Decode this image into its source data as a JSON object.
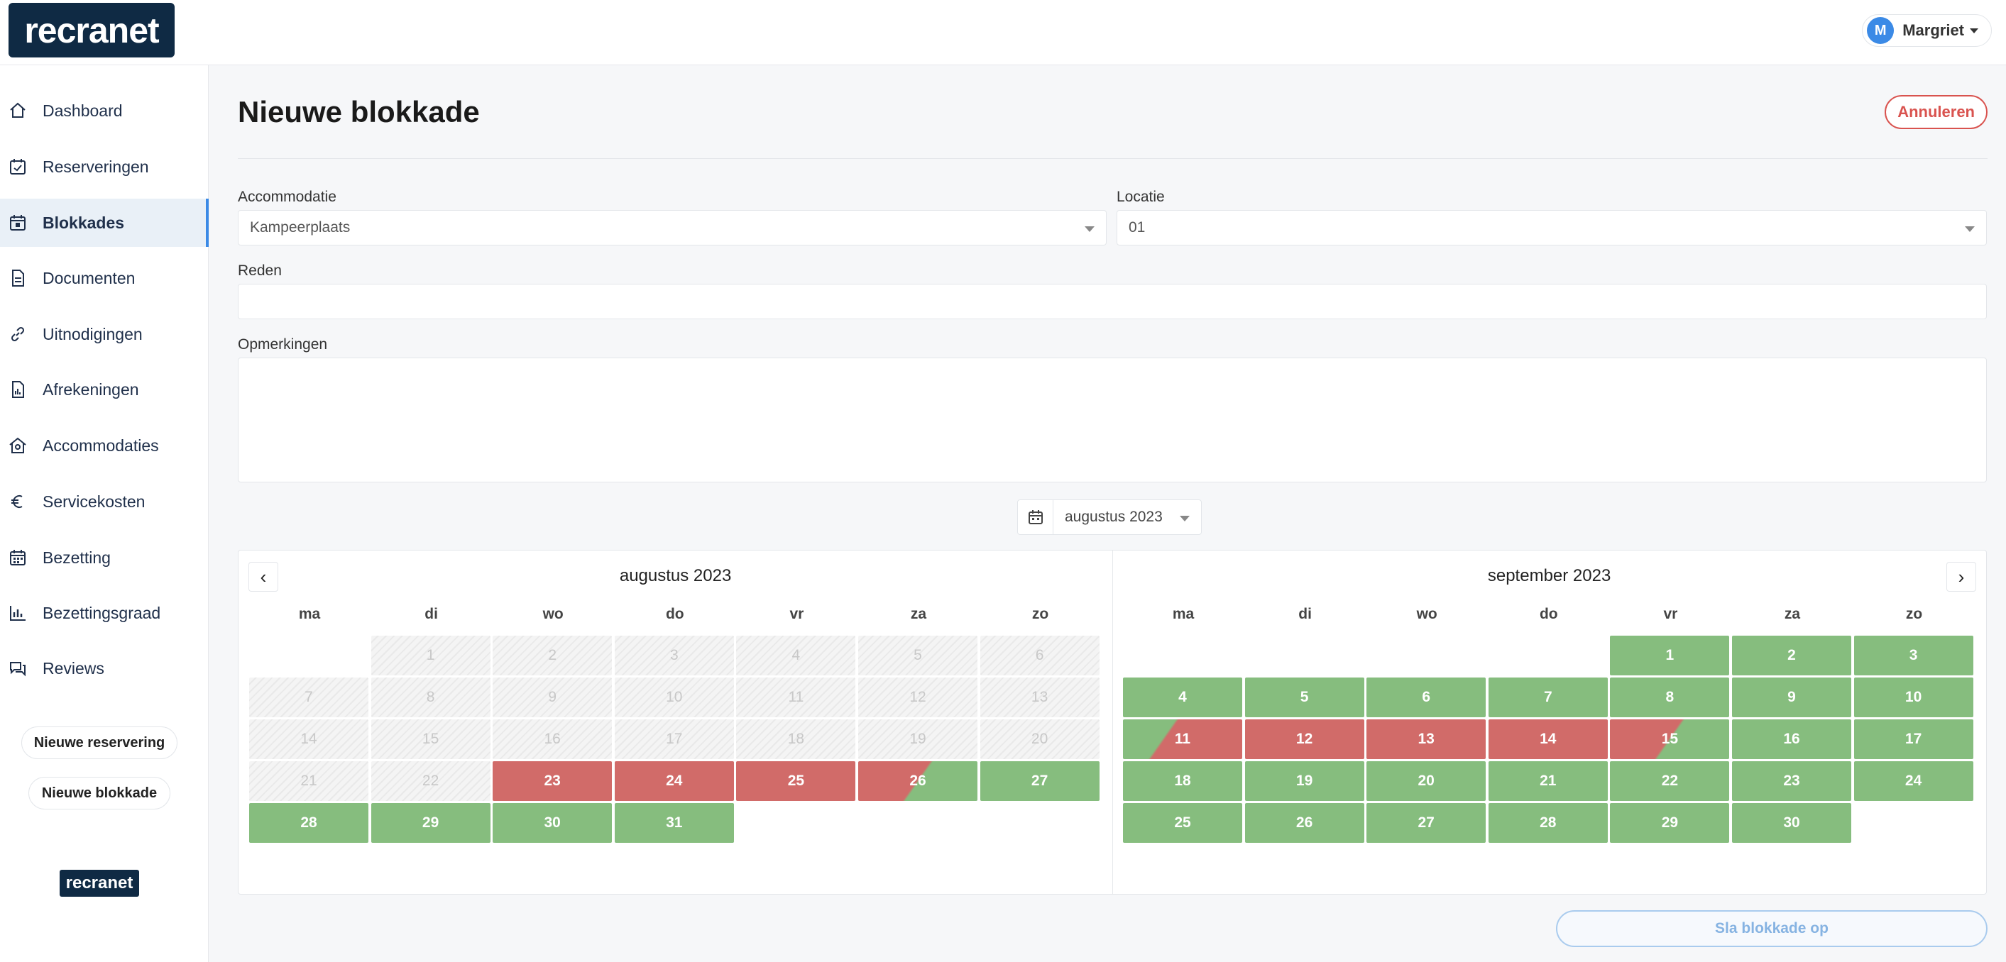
{
  "app": {
    "logo_text": "recranet",
    "footer_logo_text": "recranet"
  },
  "user": {
    "initial": "M",
    "name": "Margriet"
  },
  "sidebar": {
    "items": [
      {
        "label": "Dashboard",
        "icon": "home-icon",
        "active": false
      },
      {
        "label": "Reserveringen",
        "icon": "calendar-check-icon",
        "active": false
      },
      {
        "label": "Blokkades",
        "icon": "calendar-block-icon",
        "active": true
      },
      {
        "label": "Documenten",
        "icon": "document-icon",
        "active": false
      },
      {
        "label": "Uitnodigingen",
        "icon": "link-icon",
        "active": false
      },
      {
        "label": "Afrekeningen",
        "icon": "invoice-icon",
        "active": false
      },
      {
        "label": "Accommodaties",
        "icon": "house-icon",
        "active": false
      },
      {
        "label": "Servicekosten",
        "icon": "euro-icon",
        "active": false
      },
      {
        "label": "Bezetting",
        "icon": "calendar-icon",
        "active": false
      },
      {
        "label": "Bezettingsgraad",
        "icon": "bar-chart-icon",
        "active": false
      },
      {
        "label": "Reviews",
        "icon": "chat-icon",
        "active": false
      }
    ],
    "new_reservation": "Nieuwe reservering",
    "new_block": "Nieuwe blokkade"
  },
  "page": {
    "title": "Nieuwe blokkade",
    "cancel_label": "Annuleren",
    "save_label": "Sla blokkade op"
  },
  "form": {
    "accommodation": {
      "label": "Accommodatie",
      "value": "Kampeerplaats"
    },
    "location": {
      "label": "Locatie",
      "value": "01"
    },
    "reason": {
      "label": "Reden",
      "value": ""
    },
    "remarks": {
      "label": "Opmerkingen",
      "value": ""
    }
  },
  "month_picker": {
    "value": "augustus 2023"
  },
  "calendar": {
    "weekdays": [
      "ma",
      "di",
      "wo",
      "do",
      "vr",
      "za",
      "zo"
    ],
    "months": [
      {
        "title": "augustus 2023",
        "first_weekday_index": 1,
        "days": 31,
        "status": {
          "1": "past",
          "2": "past",
          "3": "past",
          "4": "past",
          "5": "past",
          "6": "past",
          "7": "past",
          "8": "past",
          "9": "past",
          "10": "past",
          "11": "past",
          "12": "past",
          "13": "past",
          "14": "past",
          "15": "past",
          "16": "past",
          "17": "past",
          "18": "past",
          "19": "past",
          "20": "past",
          "21": "past",
          "22": "past",
          "23": "blocked",
          "24": "blocked",
          "25": "blocked",
          "26": "blocked-to-free",
          "27": "free",
          "28": "free",
          "29": "free",
          "30": "free",
          "31": "free"
        }
      },
      {
        "title": "september 2023",
        "first_weekday_index": 4,
        "days": 30,
        "status": {
          "1": "free",
          "2": "free",
          "3": "free",
          "4": "free",
          "5": "free",
          "6": "free",
          "7": "free",
          "8": "free",
          "9": "free",
          "10": "free",
          "11": "free-to-blocked",
          "12": "blocked",
          "13": "blocked",
          "14": "blocked",
          "15": "blocked-to-free",
          "16": "free",
          "17": "free",
          "18": "free",
          "19": "free",
          "20": "free",
          "21": "free",
          "22": "free",
          "23": "free",
          "24": "free",
          "25": "free",
          "26": "free",
          "27": "free",
          "28": "free",
          "29": "free",
          "30": "free"
        }
      }
    ]
  },
  "colors": {
    "free": "#86bd7e",
    "blocked": "#d16b69",
    "accent": "#3b8ae6",
    "brand": "#0f2a44"
  }
}
